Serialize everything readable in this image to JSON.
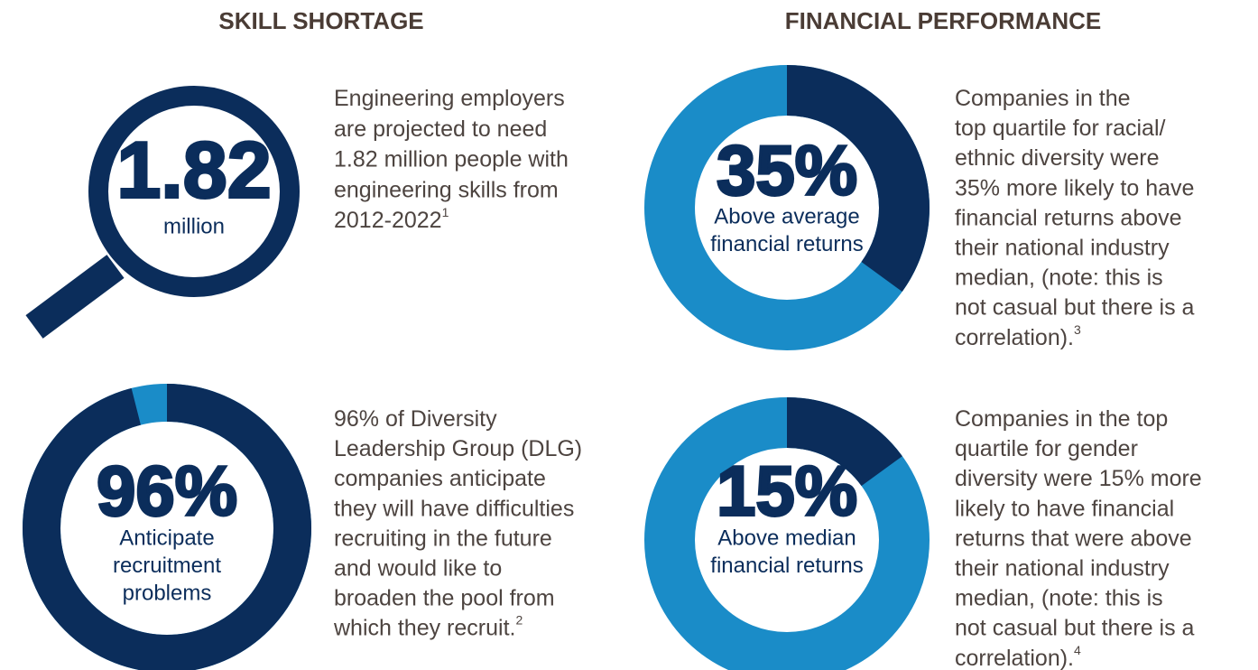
{
  "sections": [
    {
      "title": "SKILL SHORTAGE"
    },
    {
      "title": "FINANCIAL PERFORMANCE"
    }
  ],
  "magnifier": {
    "number": "1.82",
    "unit": "million",
    "text": {
      "lines": [
        "Engineering employers",
        "are projected to need",
        "1.82 million people with",
        "engineering skills from",
        "2012-2022"
      ],
      "note": "1"
    }
  },
  "donuts": [
    {
      "percent": 96,
      "label": "96%",
      "caption": [
        "Anticipate",
        "recruitment",
        "problems"
      ],
      "text": {
        "lines": [
          "96% of Diversity",
          "Leadership Group (DLG)",
          "companies anticipate",
          "they will have difficulties",
          "recruiting in the future",
          "and would like to",
          "broaden the pool from",
          "which they recruit."
        ],
        "note": "2"
      }
    },
    {
      "percent": 35,
      "label": "35%",
      "caption": [
        "Above average",
        "financial returns"
      ],
      "text": {
        "lines": [
          "Companies in the",
          "top quartile for racial/",
          "ethnic diversity were",
          "35% more likely to have",
          "financial returns above",
          "their national industry",
          "median, (note: this is",
          "not casual but there is a",
          "correlation)."
        ],
        "note": "3"
      }
    },
    {
      "percent": 15,
      "label": "15%",
      "caption": [
        "Above median",
        "financial returns"
      ],
      "text": {
        "lines": [
          "Companies in the top",
          "quartile for gender",
          "diversity were 15% more",
          "likely to have financial",
          "returns that were above",
          "their national industry",
          "median, (note: this is",
          "not casual but there is a",
          "correlation)."
        ],
        "note": "4"
      }
    }
  ]
}
